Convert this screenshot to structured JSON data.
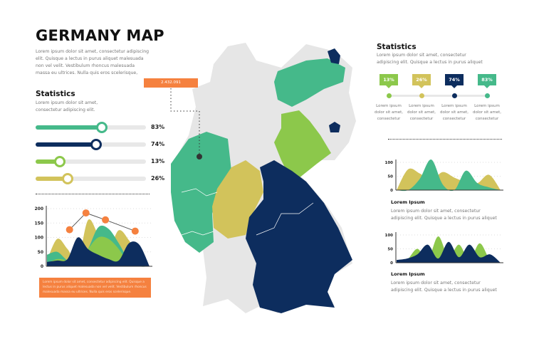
{
  "header": {
    "title": "GERMANY MAP",
    "description": "Lorem ipsum dolor sit amet, consectetur adipiscing elit. Quisque a lectus in purus aliquet malesuada non vel velit. Vestibulum rhoncus malesuada massa eu ultrices. Nulla quis eros scelerisque,"
  },
  "left_stats": {
    "title": "Statistics",
    "description": "Lorem ipsum dolor sit amet, consectetur adipiscing elit.",
    "bars": [
      {
        "value": 83,
        "label": "83%",
        "color": "#45b98a"
      },
      {
        "value": 74,
        "label": "74%",
        "color": "#0d2d5e"
      },
      {
        "value": 13,
        "label": "13%",
        "color": "#8cc84b"
      },
      {
        "value": 26,
        "label": "26%",
        "color": "#d2c35b"
      }
    ]
  },
  "map": {
    "callout": "2.432.091",
    "colors": {
      "land": "#e6e6e6",
      "teal": "#45b98a",
      "navy": "#0d2d5e",
      "lime": "#8cc84b",
      "olive": "#d2c35b",
      "orange": "#f5813f"
    }
  },
  "right_stats": {
    "title": "Statistics",
    "description": "Lorem ipsum dolor sit amet, consectetur adipiscing elit. Quisque a lectus in purus aliquet",
    "items": [
      {
        "label": "13%",
        "color": "#8cc84b",
        "text": "Lorem ipsum dolor sit amet, consectetur"
      },
      {
        "label": "26%",
        "color": "#d2c35b",
        "text": "Lorem ipsum dolor sit amet, consectetur"
      },
      {
        "label": "74%",
        "color": "#0d2d5e",
        "text": "Lorem ipsum dolor sit amet, consectetur"
      },
      {
        "label": "83%",
        "color": "#45b98a",
        "text": "Lorem ipsum dolor sit amet, consectetur"
      }
    ]
  },
  "orange_note": "Lorem ipsum dolor sit amet, consectetur adipiscing elit. Quisque a lectus in purus aliquet malesuada non vel velit. Vestibulum rhoncus malesuada massa eu ultrices. Nulla quis eros scelerisque.",
  "right_chart_1": {
    "heading": "Lorem Ipsum",
    "text": "Lorem ipsum dolor sit amet, consectetur adipiscing elit. Quisque a lectus in purus aliquet"
  },
  "right_chart_2": {
    "heading": "Lorem Ipsum",
    "text": "Lorem ipsum dolor sit amet, consectetur adipiscing elit. Quisque a lectus in purus aliquet"
  },
  "chart_data": [
    {
      "type": "area",
      "ylim": [
        0,
        200
      ],
      "yticks": [
        "0",
        "50",
        "100",
        "150",
        "200"
      ],
      "grid": true,
      "series": [
        {
          "color": "#d2c35b",
          "values": [
            20,
            95,
            60,
            20,
            160,
            110,
            60,
            125,
            90,
            30,
            0
          ]
        },
        {
          "color": "#45b98a",
          "values": [
            40,
            50,
            20,
            10,
            60,
            135,
            130,
            80,
            20,
            0,
            0
          ]
        },
        {
          "color": "#8cc84b",
          "values": [
            10,
            25,
            20,
            10,
            60,
            100,
            95,
            60,
            10,
            0,
            0
          ]
        },
        {
          "color": "#0d2d5e",
          "values": [
            15,
            20,
            25,
            100,
            60,
            40,
            25,
            20,
            80,
            75,
            0
          ]
        }
      ],
      "line": {
        "color": "#f5813f",
        "x": [
          2.2,
          3.8,
          5.7,
          8.6
        ],
        "values": [
          127,
          185,
          161,
          122
        ]
      }
    },
    {
      "type": "area",
      "ylim": [
        0,
        100
      ],
      "yticks": [
        "0",
        "50",
        "100"
      ],
      "grid": true,
      "series": [
        {
          "color": "#d2c35b",
          "values": [
            0,
            75,
            60,
            35,
            65,
            45,
            30,
            25,
            55,
            0
          ]
        },
        {
          "color": "#45b98a",
          "values": [
            0,
            0,
            40,
            110,
            20,
            0,
            70,
            25,
            10,
            0
          ]
        }
      ]
    },
    {
      "type": "area",
      "ylim": [
        0,
        100
      ],
      "yticks": [
        "0",
        "50",
        "100"
      ],
      "grid": true,
      "series": [
        {
          "color": "#8cc84b",
          "values": [
            0,
            10,
            50,
            10,
            95,
            20,
            65,
            10,
            70,
            10,
            0
          ]
        },
        {
          "color": "#0d2d5e",
          "values": [
            10,
            15,
            30,
            65,
            15,
            75,
            20,
            65,
            20,
            30,
            0
          ]
        }
      ]
    }
  ]
}
